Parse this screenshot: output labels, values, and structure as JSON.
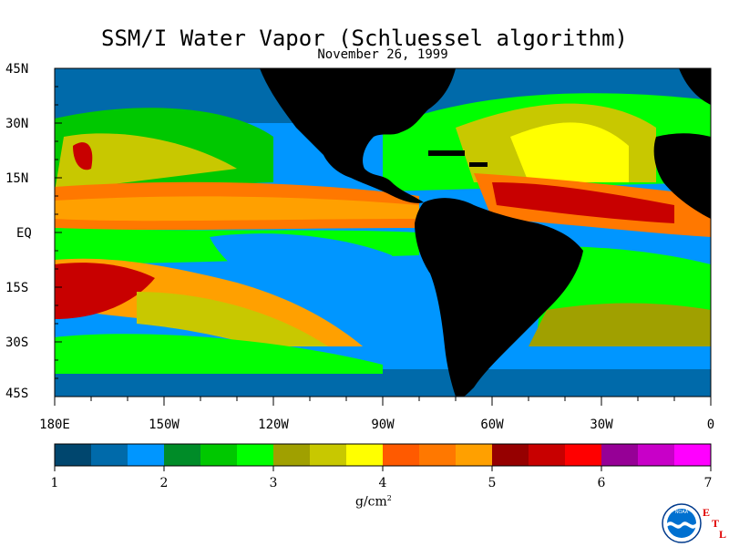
{
  "title": "SSM/I Water Vapor (Schluessel algorithm)",
  "date": "November 26, 1999",
  "latitude_labels": [
    "45N",
    "30N",
    "15N",
    "EQ",
    "15S",
    "30S",
    "45S"
  ],
  "longitude_labels": [
    "180E",
    "150W",
    "120W",
    "90W",
    "60W",
    "30W",
    "0"
  ],
  "colorbar": {
    "tick_labels": [
      "1",
      "2",
      "3",
      "4",
      "5",
      "6",
      "7"
    ],
    "units_text": "g/cm",
    "units_exponent": "2",
    "range": [
      1,
      7
    ],
    "colors": [
      "#00466e",
      "#006aaa",
      "#0096ff",
      "#008c28",
      "#00c800",
      "#00ff00",
      "#a0a000",
      "#c8c800",
      "#ffff00",
      "#ff5a00",
      "#ff7800",
      "#ffa000",
      "#960000",
      "#c80000",
      "#ff0000",
      "#960096",
      "#c800c8",
      "#ff00ff"
    ]
  },
  "logo": {
    "agency_text": "NOAA",
    "lab_text": "ETL"
  }
}
